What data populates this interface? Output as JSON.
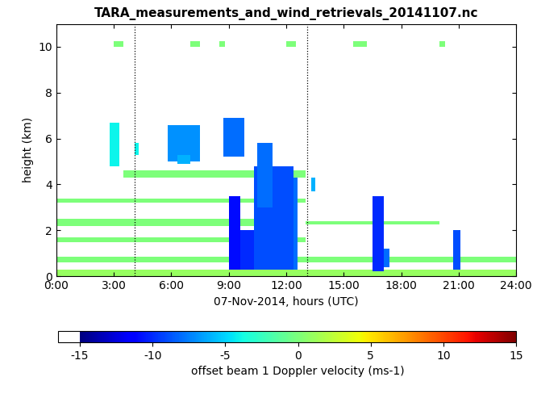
{
  "chart_data": {
    "type": "heatmap",
    "title": "TARA_measurements_and_wind_retrievals_20141107.nc",
    "x_label": "07-Nov-2014, hours (UTC)",
    "y_label": "height (km)",
    "xlim": [
      0,
      24
    ],
    "xticks": [
      {
        "value": 0,
        "label": "0:00"
      },
      {
        "value": 3,
        "label": "3:00"
      },
      {
        "value": 6,
        "label": "6:00"
      },
      {
        "value": 9,
        "label": "9:00"
      },
      {
        "value": 12,
        "label": "12:00"
      },
      {
        "value": 15,
        "label": "15:00"
      },
      {
        "value": 18,
        "label": "18:00"
      },
      {
        "value": 21,
        "label": "21:00"
      },
      {
        "value": 24,
        "label": "24:00"
      }
    ],
    "ylim": [
      0,
      11
    ],
    "yticks": [
      0,
      2,
      4,
      6,
      8,
      10
    ],
    "vlines": [
      4.1,
      13.1
    ],
    "colorbar": {
      "label": "offset beam 1 Doppler velocity (ms-1)",
      "lim": [
        -15,
        15
      ],
      "ticks": [
        -15,
        -10,
        -5,
        0,
        5,
        10,
        15
      ]
    },
    "regions": [
      {
        "x": [
          0,
          24
        ],
        "y": [
          0.0,
          0.3
        ],
        "value": 1
      },
      {
        "x": [
          0,
          24
        ],
        "y": [
          0.6,
          0.85
        ],
        "value": 0
      },
      {
        "x": [
          0,
          13
        ],
        "y": [
          1.5,
          1.7
        ],
        "value": 0
      },
      {
        "x": [
          0,
          12
        ],
        "y": [
          2.2,
          2.5
        ],
        "value": 0
      },
      {
        "x": [
          13,
          20
        ],
        "y": [
          2.25,
          2.4
        ],
        "value": 0
      },
      {
        "x": [
          0,
          13
        ],
        "y": [
          3.2,
          3.4
        ],
        "value": 0
      },
      {
        "x": [
          3.5,
          13
        ],
        "y": [
          4.3,
          4.6
        ],
        "value": 0
      },
      {
        "x": [
          2.8,
          3.3
        ],
        "y": [
          4.8,
          6.7
        ],
        "value": -4
      },
      {
        "x": [
          4.1,
          4.3
        ],
        "y": [
          5.3,
          5.8
        ],
        "value": -4
      },
      {
        "x": [
          5.8,
          7.5
        ],
        "y": [
          5.0,
          6.6
        ],
        "value": -7
      },
      {
        "x": [
          6.3,
          7.0
        ],
        "y": [
          4.9,
          5.3
        ],
        "value": -6
      },
      {
        "x": [
          8.7,
          9.8
        ],
        "y": [
          5.2,
          6.9
        ],
        "value": -8
      },
      {
        "x": [
          9.0,
          9.6
        ],
        "y": [
          0.3,
          3.5
        ],
        "value": -11
      },
      {
        "x": [
          9.6,
          10.3
        ],
        "y": [
          0.3,
          2.0
        ],
        "value": -10
      },
      {
        "x": [
          10.3,
          12.4
        ],
        "y": [
          0.3,
          4.8
        ],
        "value": -9
      },
      {
        "x": [
          10.5,
          11.3
        ],
        "y": [
          3.0,
          5.8
        ],
        "value": -8
      },
      {
        "x": [
          12.4,
          12.6
        ],
        "y": [
          0.3,
          4.3
        ],
        "value": -8
      },
      {
        "x": [
          13.3,
          13.5
        ],
        "y": [
          3.7,
          4.3
        ],
        "value": -6
      },
      {
        "x": [
          16.5,
          17.1
        ],
        "y": [
          0.2,
          3.5
        ],
        "value": -10
      },
      {
        "x": [
          17.1,
          17.4
        ],
        "y": [
          0.4,
          1.2
        ],
        "value": -8
      },
      {
        "x": [
          20.7,
          21.1
        ],
        "y": [
          0.3,
          2.0
        ],
        "value": -9
      },
      {
        "x": [
          3.0,
          3.5
        ],
        "y": [
          10.0,
          10.25
        ],
        "value": 0
      },
      {
        "x": [
          7.0,
          7.5
        ],
        "y": [
          10.0,
          10.25
        ],
        "value": 0
      },
      {
        "x": [
          8.5,
          8.8
        ],
        "y": [
          10.0,
          10.25
        ],
        "value": 0
      },
      {
        "x": [
          12.0,
          12.5
        ],
        "y": [
          10.0,
          10.25
        ],
        "value": 0
      },
      {
        "x": [
          15.5,
          16.2
        ],
        "y": [
          10.0,
          10.25
        ],
        "value": 0
      },
      {
        "x": [
          20.0,
          20.3
        ],
        "y": [
          10.0,
          10.25
        ],
        "value": 0
      }
    ]
  }
}
